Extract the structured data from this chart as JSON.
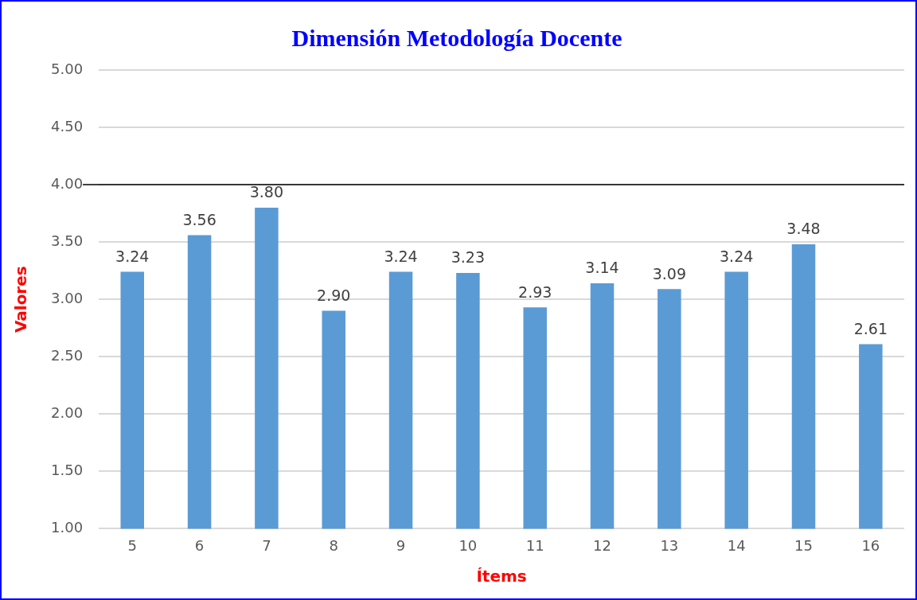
{
  "chart_data": {
    "type": "bar",
    "title": "Dimensión Metodología Docente",
    "xlabel": "Ítems",
    "ylabel": "Valores",
    "categories": [
      "5",
      "6",
      "7",
      "8",
      "9",
      "10",
      "11",
      "12",
      "13",
      "14",
      "15",
      "16"
    ],
    "values": [
      3.24,
      3.56,
      3.8,
      2.9,
      3.24,
      3.23,
      2.93,
      3.14,
      3.09,
      3.24,
      3.48,
      2.61
    ],
    "value_labels": [
      "3.24",
      "3.56",
      "3.80",
      "2.90",
      "3.24",
      "3.23",
      "2.93",
      "3.14",
      "3.09",
      "3.24",
      "3.48",
      "2.61"
    ],
    "color": "#5b9bd5",
    "ylim": [
      1,
      5
    ],
    "yticks": [
      {
        "value": 1,
        "label": "1.00"
      },
      {
        "value": 1.5,
        "label": "1.50"
      },
      {
        "value": 2,
        "label": "2.00"
      },
      {
        "value": 2.5,
        "label": "2.50"
      },
      {
        "value": 3,
        "label": "3.00"
      },
      {
        "value": 3.5,
        "label": "3.50"
      },
      {
        "value": 4,
        "label": "4.00"
      },
      {
        "value": 4.5,
        "label": "4.50"
      },
      {
        "value": 5,
        "label": "5.00"
      }
    ],
    "ref_lines": [
      {
        "axis": "y",
        "value": 4,
        "color": "#000000"
      }
    ],
    "grid": "y",
    "legend": false
  }
}
